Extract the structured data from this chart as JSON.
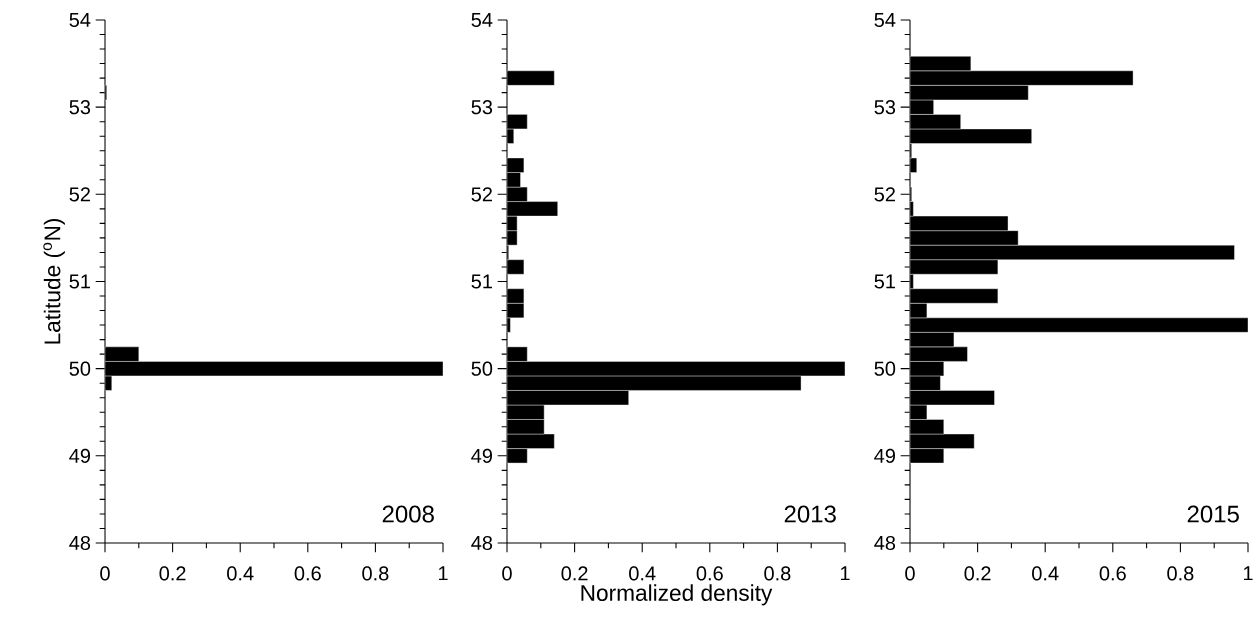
{
  "chart_data": [
    {
      "type": "histogram",
      "orientation": "horizontal",
      "color": "#000000",
      "ylabel": "Latitude ($^{o}$N)",
      "annotations": [
        "2008"
      ],
      "bins": [
        48.917,
        49.083,
        49.25,
        49.417,
        49.583,
        49.75,
        49.917,
        50.083,
        50.25,
        50.417,
        50.583,
        50.75,
        50.917,
        51.083,
        51.25,
        51.417,
        51.583,
        51.75,
        51.917,
        52.083,
        52.25,
        52.417,
        52.583,
        52.75,
        52.917,
        53.083,
        53.25,
        53.417,
        53.583
      ],
      "values": [
        0,
        0,
        0,
        0,
        0,
        0.02,
        1,
        0.1,
        0,
        0,
        0,
        0,
        0,
        0,
        0,
        0,
        0,
        0,
        0,
        0,
        0,
        0,
        0,
        0,
        0,
        0.005,
        0,
        0
      ],
      "xlim": [
        0,
        1
      ],
      "xticks": [
        0,
        0.2,
        0.4,
        0.6,
        0.8,
        1
      ],
      "ylim": [
        48,
        54
      ],
      "yticks": [
        48,
        49,
        50,
        51,
        52,
        53,
        54
      ]
    },
    {
      "type": "histogram",
      "orientation": "horizontal",
      "color": "#000000",
      "xlabel": "Normalized density",
      "annotations": [
        "2013"
      ],
      "bins": [
        48.917,
        49.083,
        49.25,
        49.417,
        49.583,
        49.75,
        49.917,
        50.083,
        50.25,
        50.417,
        50.583,
        50.75,
        50.917,
        51.083,
        51.25,
        51.417,
        51.583,
        51.75,
        51.917,
        52.083,
        52.25,
        52.417,
        52.583,
        52.75,
        52.917,
        53.083,
        53.25,
        53.417,
        53.583
      ],
      "values": [
        0.06,
        0.14,
        0.11,
        0.11,
        0.36,
        0.87,
        1,
        0.06,
        0,
        0.01,
        0.05,
        0.05,
        0,
        0.05,
        0.005,
        0.03,
        0.03,
        0.15,
        0.06,
        0.04,
        0.05,
        0,
        0.02,
        0.06,
        0,
        0,
        0.14,
        0
      ],
      "xlim": [
        0,
        1
      ],
      "xticks": [
        0,
        0.2,
        0.4,
        0.6,
        0.8,
        1
      ],
      "ylim": [
        48,
        54
      ],
      "yticks": [
        48,
        49,
        50,
        51,
        52,
        53,
        54
      ]
    },
    {
      "type": "histogram",
      "orientation": "horizontal",
      "color": "#000000",
      "annotations": [
        "2015"
      ],
      "bins": [
        48.917,
        49.083,
        49.25,
        49.417,
        49.583,
        49.75,
        49.917,
        50.083,
        50.25,
        50.417,
        50.583,
        50.75,
        50.917,
        51.083,
        51.25,
        51.417,
        51.583,
        51.75,
        51.917,
        52.083,
        52.25,
        52.417,
        52.583,
        52.75,
        52.917,
        53.083,
        53.25,
        53.417,
        53.583
      ],
      "values": [
        0.1,
        0.19,
        0.1,
        0.05,
        0.25,
        0.09,
        0.1,
        0.17,
        0.13,
        1,
        0.05,
        0.26,
        0.01,
        0.26,
        0.96,
        0.32,
        0.29,
        0.01,
        0.005,
        0,
        0.02,
        0.005,
        0.36,
        0.15,
        0.07,
        0.35,
        0.66,
        0.18
      ],
      "xlim": [
        0,
        1
      ],
      "xticks": [
        0,
        0.2,
        0.4,
        0.6,
        0.8,
        1
      ],
      "ylim": [
        48,
        54
      ],
      "yticks": [
        48,
        49,
        50,
        51,
        52,
        53,
        54
      ]
    }
  ]
}
